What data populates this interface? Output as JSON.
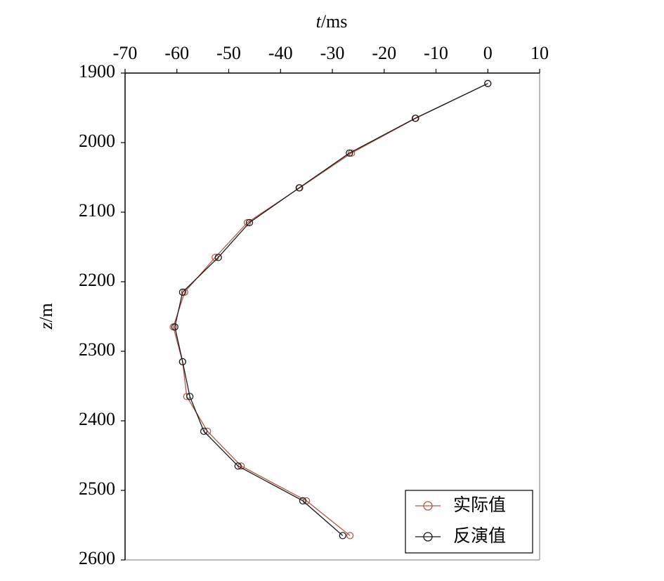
{
  "chart_data": {
    "type": "line",
    "xlabel": "t/ms",
    "ylabel": "z/m",
    "y": [
      1915,
      1965,
      2015,
      2065,
      2115,
      2165,
      2215,
      2265,
      2315,
      2365,
      2415,
      2465,
      2515,
      2565
    ],
    "series": [
      {
        "name": "实际值",
        "color": "#b3584c",
        "values": [
          0,
          -13.9,
          -26.3,
          -36.3,
          -46.4,
          -52.6,
          -58.5,
          -60.7,
          -58.9,
          -58.1,
          -54.1,
          -47.6,
          -35,
          -26.6
        ]
      },
      {
        "name": "反演值",
        "color": "#1a1a1a",
        "values": [
          0,
          -14,
          -26.7,
          -36.4,
          -46,
          -52,
          -58.9,
          -60.4,
          -58.9,
          -57.5,
          -54.8,
          -48.2,
          -35.7,
          -28
        ]
      }
    ],
    "xlim": [
      -70,
      10
    ],
    "xticks": [
      -70,
      -60,
      -50,
      -40,
      -30,
      -20,
      -10,
      0,
      10
    ],
    "ylim": [
      1900,
      2600
    ],
    "yticks": [
      1900,
      2000,
      2100,
      2200,
      2300,
      2400,
      2500,
      2600
    ],
    "y_inverted": true,
    "x_axis_position": "top",
    "legend": "lower right"
  }
}
